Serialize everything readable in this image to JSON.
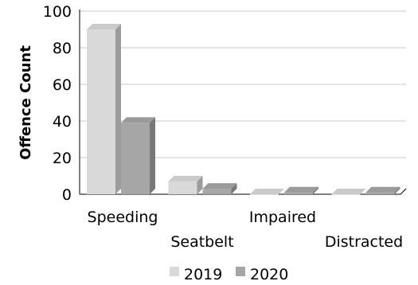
{
  "chart_data": {
    "type": "bar",
    "style": "3d-clustered",
    "categories": [
      "Speeding",
      "Seatbelt",
      "Impaired",
      "Distracted"
    ],
    "series": [
      {
        "name": "2019",
        "values": [
          90,
          7,
          0,
          0
        ],
        "color": "#d9d9d9"
      },
      {
        "name": "2020",
        "values": [
          39,
          3,
          1,
          1
        ],
        "color": "#a6a6a6"
      }
    ],
    "ylabel": "Offence Count",
    "ylim": [
      0,
      100
    ],
    "yticks": [
      "0",
      "20",
      "40",
      "60",
      "80",
      "100"
    ],
    "grid": true,
    "legend_position": "bottom"
  }
}
